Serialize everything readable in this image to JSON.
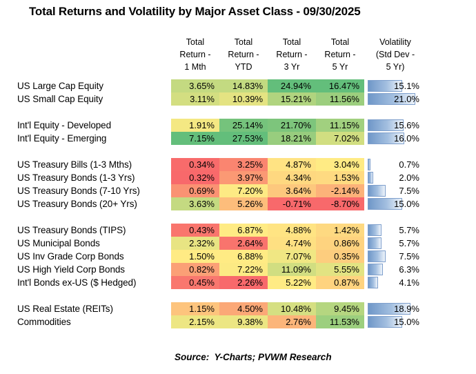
{
  "page_title": "Total Returns and Volatility by Major Asset Class - 09/30/2025",
  "footer": {
    "source_label": "Source:  Y-Charts; PVWM Research"
  },
  "chart_data": {
    "type": "table",
    "title": "Total Returns and Volatility by Major Asset Class - 09/30/2025",
    "column_headers": [
      [
        "Total",
        "Return -",
        "1 Mth"
      ],
      [
        "Total",
        "Return -",
        "YTD"
      ],
      [
        "Total",
        "Return -",
        "3 Yr"
      ],
      [
        "Total",
        "Return -",
        "5 Yr"
      ],
      [
        "Volatility",
        "(Std Dev -",
        "5 Yr)"
      ]
    ],
    "return_columns": [
      "Total Return - 1 Mth",
      "Total Return - YTD",
      "Total Return - 3 Yr",
      "Total Return - 5 Yr"
    ],
    "volatility_column": "Volatility (Std Dev - 5 Yr)",
    "groups": [
      {
        "rows": [
          {
            "label": "US Large Cap Equity",
            "returns": [
              3.65,
              14.83,
              24.94,
              16.47
            ],
            "volatility": 15.1
          },
          {
            "label": "US Small Cap Equity",
            "returns": [
              3.11,
              10.39,
              15.21,
              11.56
            ],
            "volatility": 21.0
          }
        ]
      },
      {
        "rows": [
          {
            "label": "Int'l Equity - Developed",
            "returns": [
              1.91,
              25.14,
              21.7,
              11.15
            ],
            "volatility": 15.6
          },
          {
            "label": "Int'l Equity - Emerging",
            "returns": [
              7.15,
              27.53,
              18.21,
              7.02
            ],
            "volatility": 16.0
          }
        ]
      },
      {
        "rows": [
          {
            "label": "US Treasury Bills (1-3 Mths)",
            "returns": [
              0.34,
              3.25,
              4.87,
              3.04
            ],
            "volatility": 0.7
          },
          {
            "label": "US Treasury Bonds (1-3 Yrs)",
            "returns": [
              0.32,
              3.97,
              4.34,
              1.53
            ],
            "volatility": 2.0
          },
          {
            "label": "US Treasury Bonds (7-10 Yrs)",
            "returns": [
              0.69,
              7.2,
              3.64,
              -2.14
            ],
            "volatility": 7.5
          },
          {
            "label": "US Treasury Bonds (20+ Yrs)",
            "returns": [
              3.63,
              5.26,
              -0.71,
              -8.7
            ],
            "volatility": 15.0
          }
        ]
      },
      {
        "rows": [
          {
            "label": "US Treasury Bonds (TIPS)",
            "returns": [
              0.43,
              6.87,
              4.88,
              1.42
            ],
            "volatility": 5.7
          },
          {
            "label": "US Municipal Bonds",
            "returns": [
              2.32,
              2.64,
              4.74,
              0.86
            ],
            "volatility": 5.7
          },
          {
            "label": "US Inv Grade Corp Bonds",
            "returns": [
              1.5,
              6.88,
              7.07,
              0.35
            ],
            "volatility": 7.5
          },
          {
            "label": "US High Yield Corp Bonds",
            "returns": [
              0.82,
              7.22,
              11.09,
              5.55
            ],
            "volatility": 6.3
          },
          {
            "label": "Int'l Bonds ex-US ($ Hedged)",
            "returns": [
              0.45,
              2.26,
              5.22,
              0.87
            ],
            "volatility": 4.1
          }
        ]
      },
      {
        "rows": [
          {
            "label": "US Real Estate (REITs)",
            "returns": [
              1.15,
              4.5,
              10.48,
              9.45
            ],
            "volatility": 18.9
          },
          {
            "label": "Commodities",
            "returns": [
              2.15,
              9.38,
              2.76,
              11.53
            ],
            "volatility": 15.0
          }
        ]
      }
    ],
    "heatmap_scale": {
      "description": "3-color scale applied per return column: min=red, median=yellow, max=green",
      "min_color": "#F8696B",
      "mid_color": "#FFEB84",
      "max_color": "#63BE7B"
    },
    "volatility_bar": {
      "axis_max": 25.0,
      "fill_left": "#6f97c8",
      "fill_right": "#eef4fb",
      "border_color": "#7e9fcc"
    }
  }
}
